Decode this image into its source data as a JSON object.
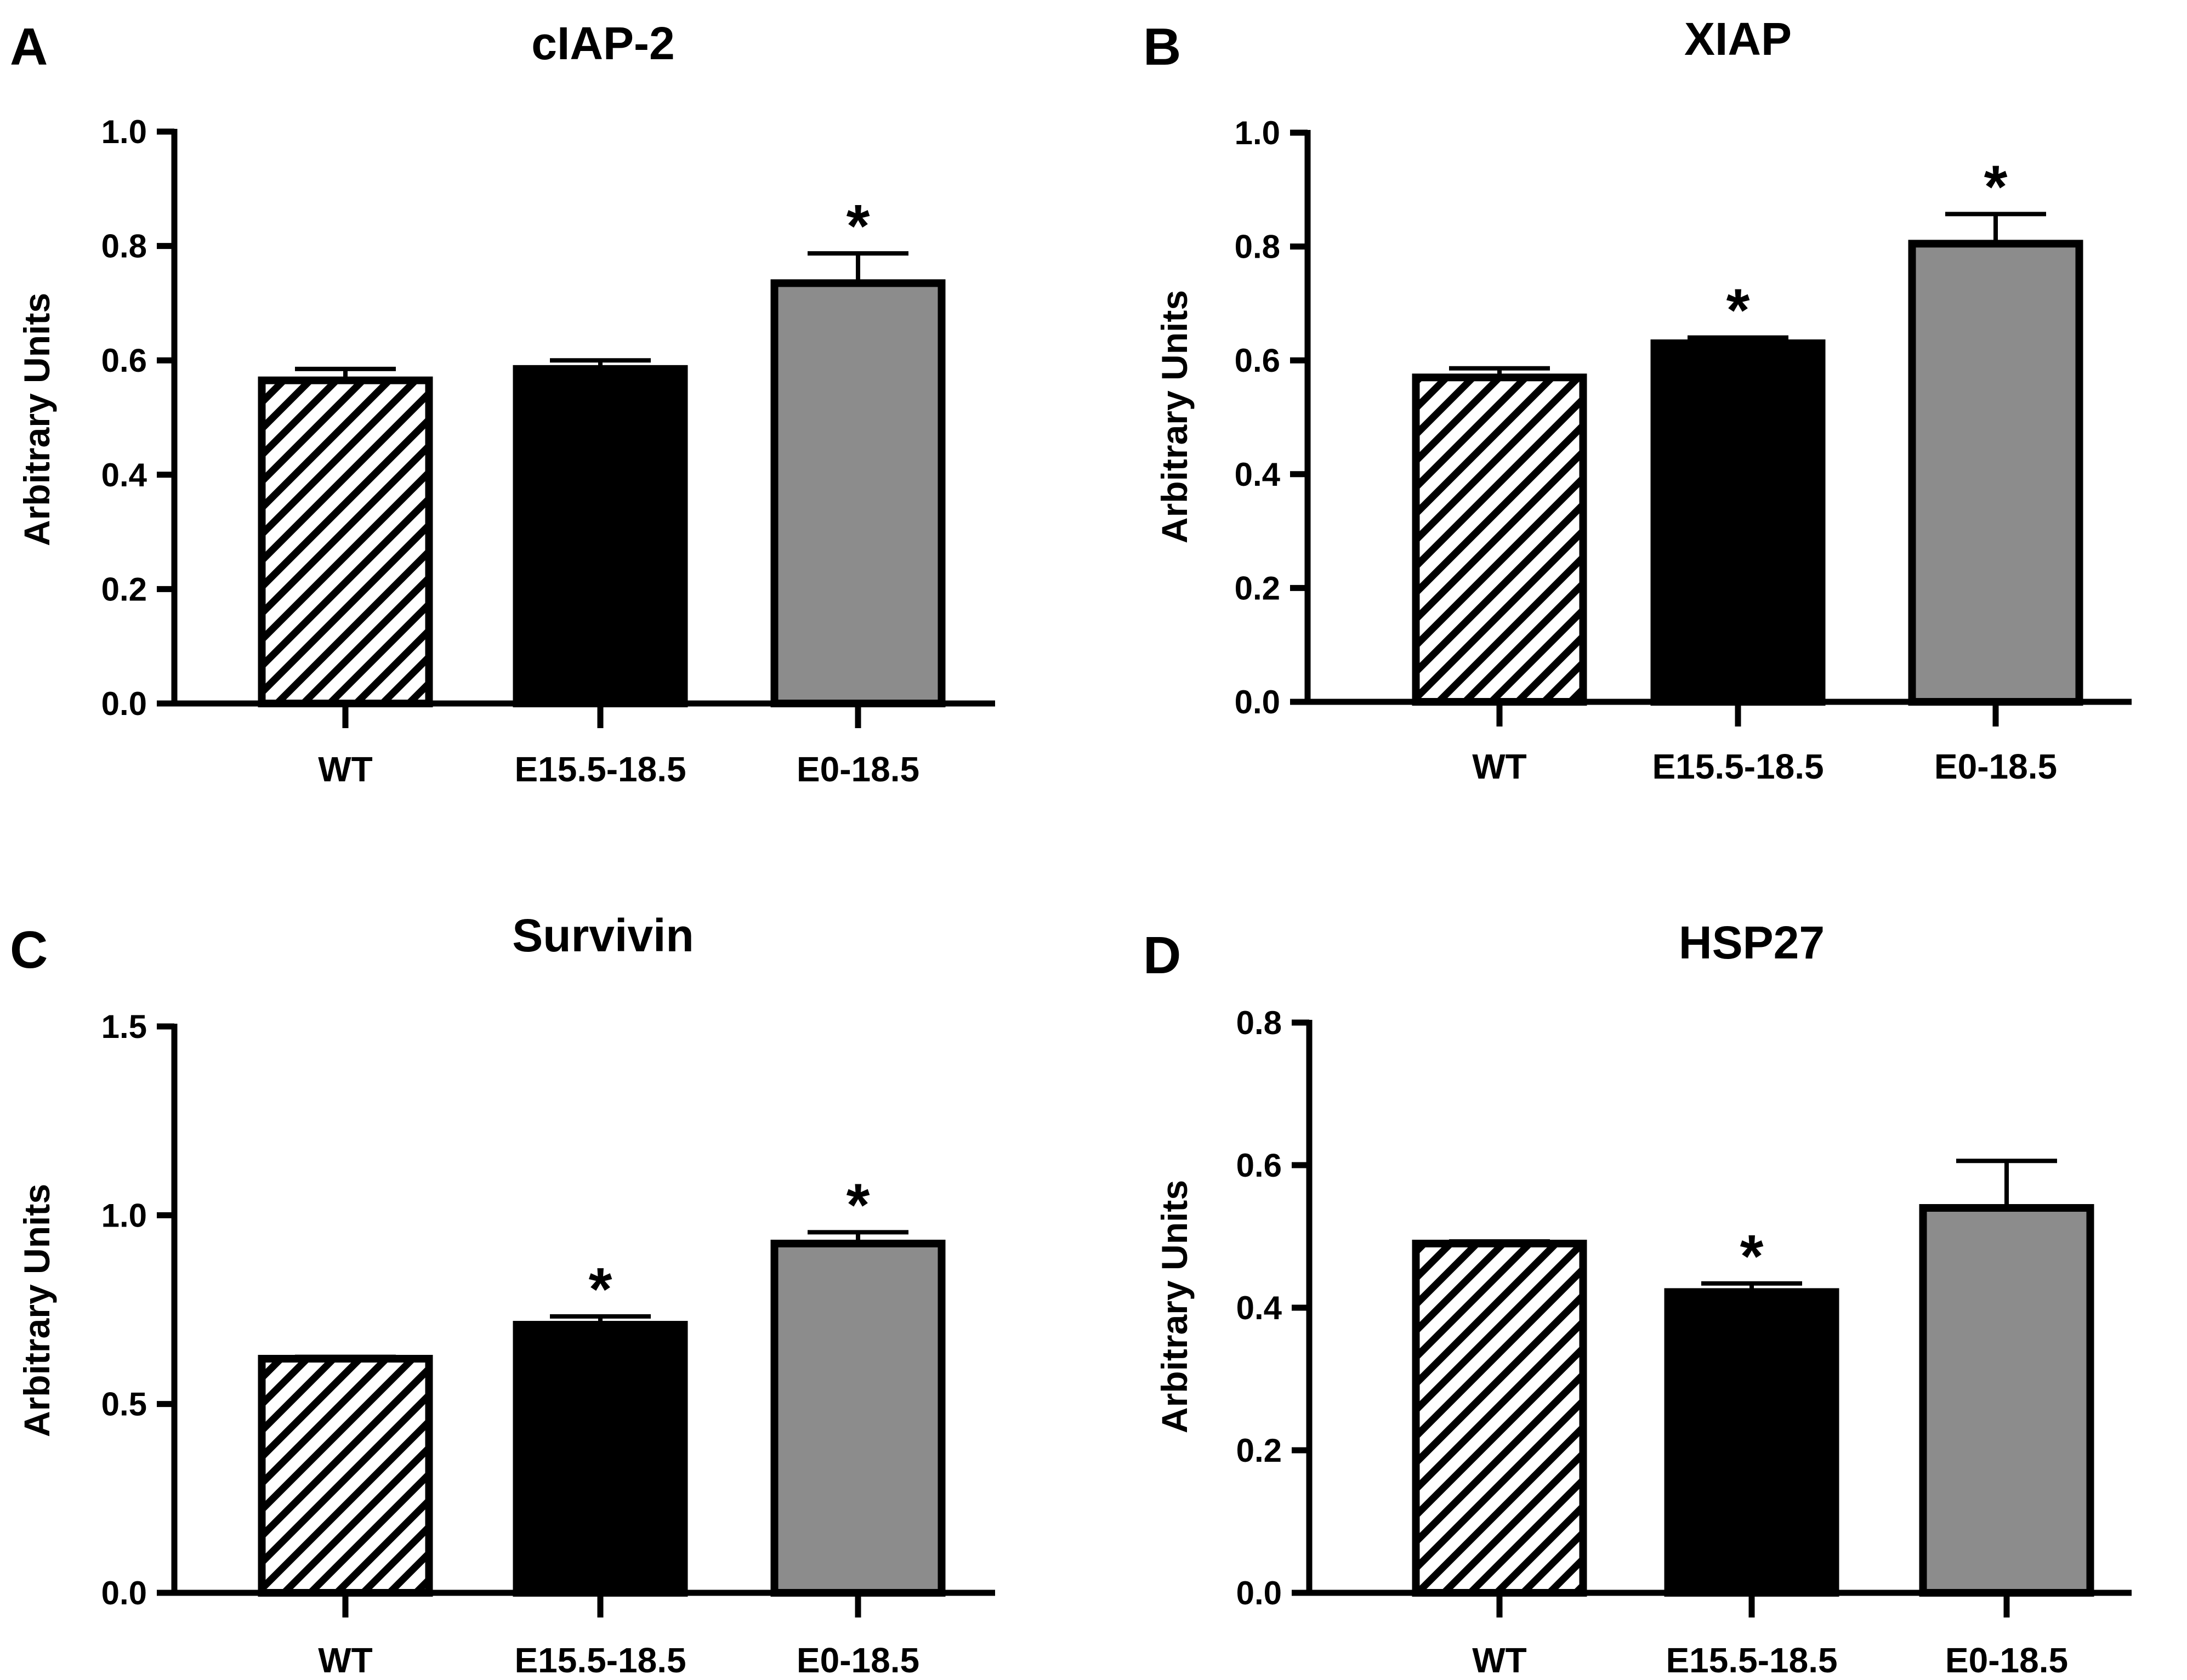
{
  "colors": {
    "axis": "#000000",
    "treated_short": "#000000",
    "treated_long": "#8c8c8c",
    "wt_fill": "#ffffff",
    "hatch": "#000000"
  },
  "chart_data": [
    {
      "panel": "A",
      "type": "bar",
      "title": "cIAP-2",
      "ylabel": "Arbitrary Units",
      "ylim": [
        0,
        1.0
      ],
      "yticks": [
        0,
        0.2,
        0.4,
        0.6,
        0.8,
        1.0
      ],
      "ytick_labels": [
        "0.0",
        "0.2",
        "0.4",
        "0.6",
        "0.8",
        "1.0"
      ],
      "categories": [
        "WT",
        "E15.5-18.5",
        "E0-18.5"
      ],
      "values": [
        0.565,
        0.585,
        0.735
      ],
      "errors": [
        0.02,
        0.015,
        0.052
      ],
      "significance": [
        "",
        "",
        "*"
      ]
    },
    {
      "panel": "B",
      "type": "bar",
      "title": "XIAP",
      "ylabel": "Arbitrary Units",
      "ylim": [
        0,
        1.0
      ],
      "yticks": [
        0,
        0.2,
        0.4,
        0.6,
        0.8,
        1.0
      ],
      "ytick_labels": [
        "0.0",
        "0.2",
        "0.4",
        "0.6",
        "0.8",
        "1.0"
      ],
      "categories": [
        "WT",
        "E15.5-18.5",
        "E0-18.5"
      ],
      "values": [
        0.57,
        0.63,
        0.805
      ],
      "errors": [
        0.016,
        0.01,
        0.052
      ],
      "significance": [
        "",
        "*",
        "*"
      ]
    },
    {
      "panel": "C",
      "type": "bar",
      "title": "Survivin",
      "ylabel": "Arbitrary Units",
      "ylim": [
        0,
        1.5
      ],
      "yticks": [
        0,
        0.5,
        1.0,
        1.5
      ],
      "ytick_labels": [
        "0.0",
        "0.5",
        "1.0",
        "1.5"
      ],
      "categories": [
        "WT",
        "E15.5-18.5",
        "E0-18.5"
      ],
      "values": [
        0.62,
        0.71,
        0.925
      ],
      "errors": [
        0.005,
        0.022,
        0.03
      ],
      "significance": [
        "",
        "*",
        "*"
      ]
    },
    {
      "panel": "D",
      "type": "bar",
      "title": "HSP27",
      "ylabel": "Arbitrary Units",
      "ylim": [
        0,
        0.8
      ],
      "yticks": [
        0,
        0.2,
        0.4,
        0.6,
        0.8
      ],
      "ytick_labels": [
        "0.0",
        "0.2",
        "0.4",
        "0.6",
        "0.8"
      ],
      "categories": [
        "WT",
        "E15.5-18.5",
        "E0-18.5"
      ],
      "values": [
        0.49,
        0.422,
        0.54
      ],
      "errors": [
        0.003,
        0.012,
        0.066
      ],
      "significance": [
        "",
        "*",
        ""
      ]
    }
  ]
}
